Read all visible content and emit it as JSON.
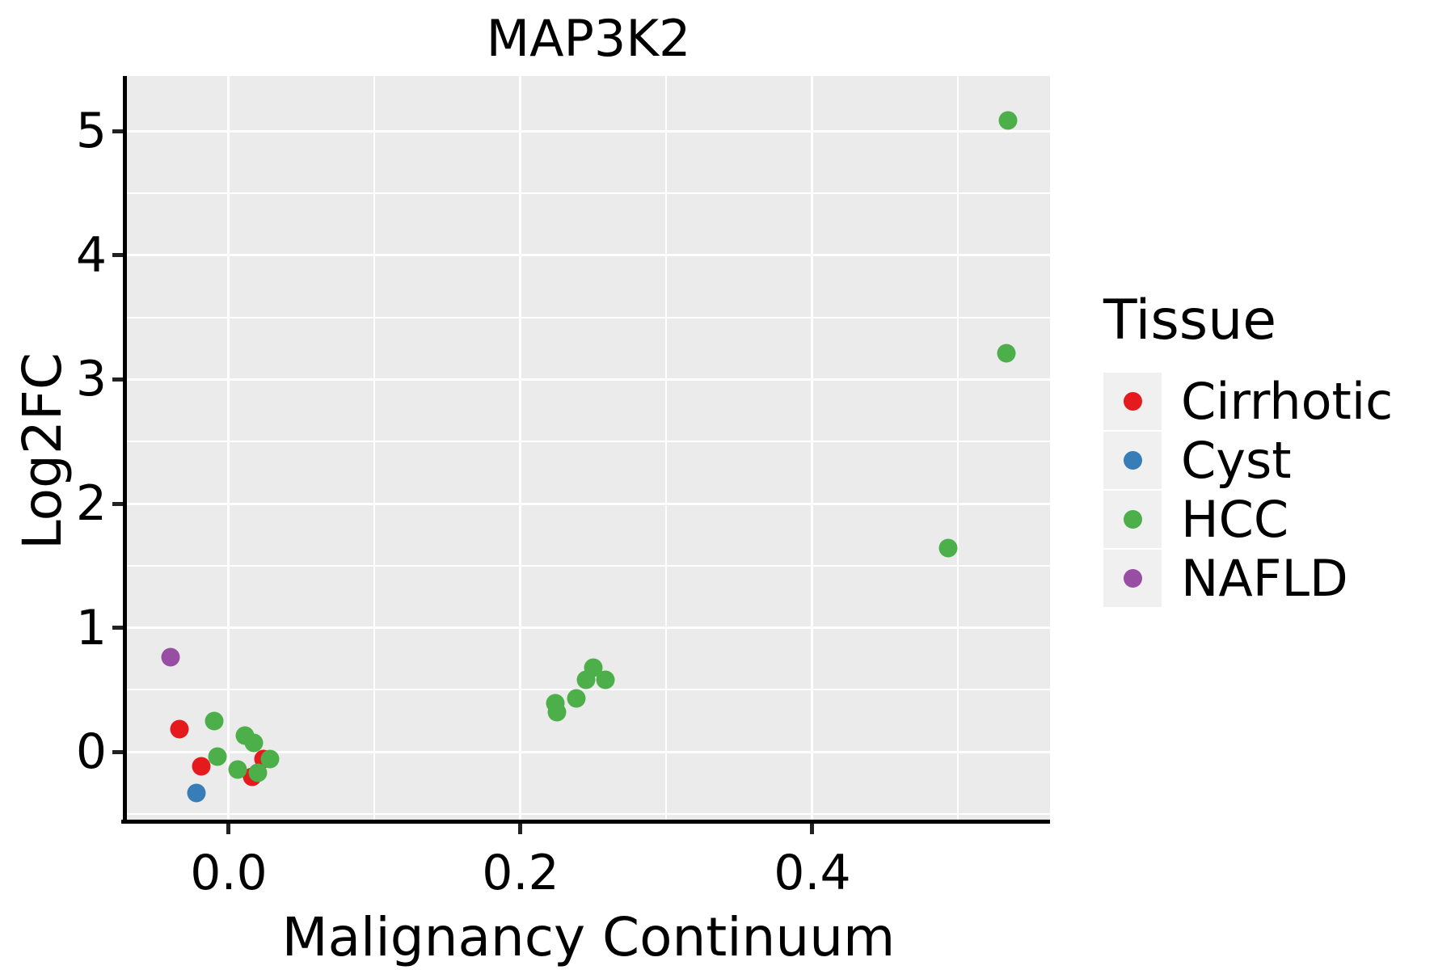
{
  "title": "MAP3K2",
  "axes": {
    "x": {
      "label": "Malignancy Continuum",
      "tick_labels": [
        "0.0",
        "0.2",
        "0.4"
      ],
      "tick_values": [
        0,
        0.2,
        0.4
      ],
      "minor_tick_values": [
        0.1,
        0.3,
        0.5
      ],
      "lim": [
        -0.0698,
        0.5629
      ]
    },
    "y": {
      "label": "Log2FC",
      "tick_labels": [
        "0",
        "1",
        "2",
        "3",
        "4",
        "5"
      ],
      "tick_values": [
        0,
        1,
        2,
        3,
        4,
        5
      ],
      "minor_tick_values": [
        -0.5,
        0.5,
        1.5,
        2.5,
        3.5,
        4.5
      ],
      "lim": [
        -0.56,
        5.446
      ]
    }
  },
  "legend": {
    "title": "Tissue",
    "items": [
      {
        "label": "Cirrhotic",
        "color": "#E41A1C"
      },
      {
        "label": "Cyst",
        "color": "#377EB8"
      },
      {
        "label": "HCC",
        "color": "#4DAF4A"
      },
      {
        "label": "NAFLD",
        "color": "#984EA3"
      }
    ]
  },
  "chart_data": {
    "type": "scatter",
    "title": "MAP3K2",
    "xlabel": "Malignancy Continuum",
    "ylabel": "Log2FC",
    "xlim": [
      -0.07,
      0.56
    ],
    "ylim": [
      -0.56,
      5.45
    ],
    "grid": true,
    "legend_position": "right",
    "series": [
      {
        "name": "Cirrhotic",
        "color": "#E41A1C",
        "points": [
          [
            -0.034,
            0.18
          ],
          [
            -0.019,
            -0.12
          ],
          [
            0.024,
            -0.06
          ],
          [
            0.016,
            -0.2
          ]
        ]
      },
      {
        "name": "Cyst",
        "color": "#377EB8",
        "points": [
          [
            -0.022,
            -0.33
          ]
        ]
      },
      {
        "name": "HCC",
        "color": "#4DAF4A",
        "points": [
          [
            -0.01,
            0.25
          ],
          [
            -0.008,
            -0.04
          ],
          [
            0.011,
            0.13
          ],
          [
            0.017,
            0.07
          ],
          [
            0.028,
            -0.06
          ],
          [
            0.006,
            -0.14
          ],
          [
            0.02,
            -0.17
          ],
          [
            0.224,
            0.39
          ],
          [
            0.225,
            0.32
          ],
          [
            0.238,
            0.43
          ],
          [
            0.245,
            0.58
          ],
          [
            0.25,
            0.68
          ],
          [
            0.258,
            0.58
          ],
          [
            0.493,
            1.64
          ],
          [
            0.533,
            3.21
          ],
          [
            0.534,
            5.09
          ]
        ]
      },
      {
        "name": "NAFLD",
        "color": "#984EA3",
        "points": [
          [
            -0.04,
            0.76
          ]
        ]
      }
    ]
  },
  "style": {
    "panel_bg": "#EBEBEB",
    "grid_color": "#FFFFFF",
    "legend_key_bg": "#F0F0F0",
    "axis_color": "#000000",
    "point_diameter": 23
  }
}
